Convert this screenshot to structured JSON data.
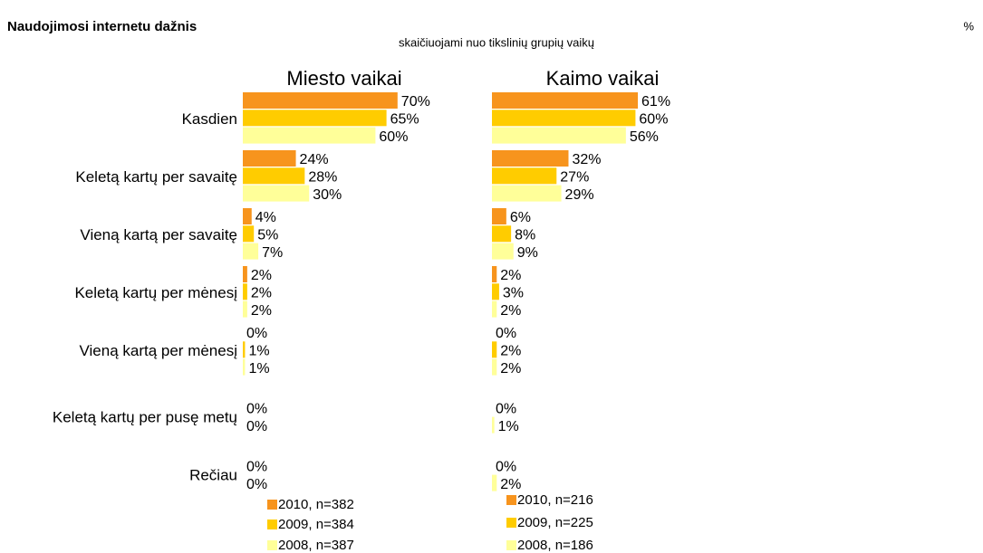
{
  "title": "Naudojimosi internetu dažnis",
  "unit_label": "%",
  "subtitle": "skaičiuojami nuo tikslinių grupių vaikų",
  "chart_data": [
    {
      "type": "bar",
      "title": "Miesto vaikai",
      "categories": [
        "Kasdien",
        "Keletą kartų per savaitę",
        "Vieną kartą per savaitę",
        "Keletą kartų per mėnesį",
        "Vieną kartą per mėnesį",
        "Keletą kartų per pusę metų",
        "Rečiau"
      ],
      "series": [
        {
          "name": "2010, n=382",
          "color": "#f7941d",
          "values": [
            70,
            24,
            4,
            2,
            0,
            null,
            null
          ],
          "value_labels": [
            "70%",
            "24%",
            "4%",
            "2%",
            "0%",
            null,
            null
          ]
        },
        {
          "name": "2009, n=384",
          "color": "#ffcc00",
          "values": [
            65,
            28,
            5,
            2,
            1,
            0,
            0
          ],
          "value_labels": [
            "65%",
            "28%",
            "5%",
            "2%",
            "1%",
            "0%",
            "0%"
          ]
        },
        {
          "name": "2008, n=387",
          "color": "#ffff99",
          "values": [
            60,
            30,
            7,
            2,
            1,
            0,
            0
          ],
          "value_labels": [
            "60%",
            "30%",
            "7%",
            "2%",
            "1%",
            "0%",
            "0%"
          ]
        }
      ]
    },
    {
      "type": "bar",
      "title": "Kaimo vaikai",
      "series": [
        {
          "name": "2010, n=216",
          "color": "#f7941d",
          "values": [
            61,
            32,
            6,
            2,
            0,
            null,
            null
          ],
          "value_labels": [
            "61%",
            "32%",
            "6%",
            "2%",
            "0%",
            null,
            null
          ]
        },
        {
          "name": "2009, n=225",
          "color": "#ffcc00",
          "values": [
            60,
            27,
            8,
            3,
            2,
            0,
            0
          ],
          "value_labels": [
            "60%",
            "27%",
            "8%",
            "3%",
            "2%",
            "0%",
            "0%"
          ]
        },
        {
          "name": "2008, n=186",
          "color": "#ffff99",
          "values": [
            56,
            29,
            9,
            2,
            2,
            1,
            2
          ],
          "value_labels": [
            "56%",
            "29%",
            "9%",
            "2%",
            "2%",
            "1%",
            "2%"
          ]
        }
      ]
    }
  ]
}
